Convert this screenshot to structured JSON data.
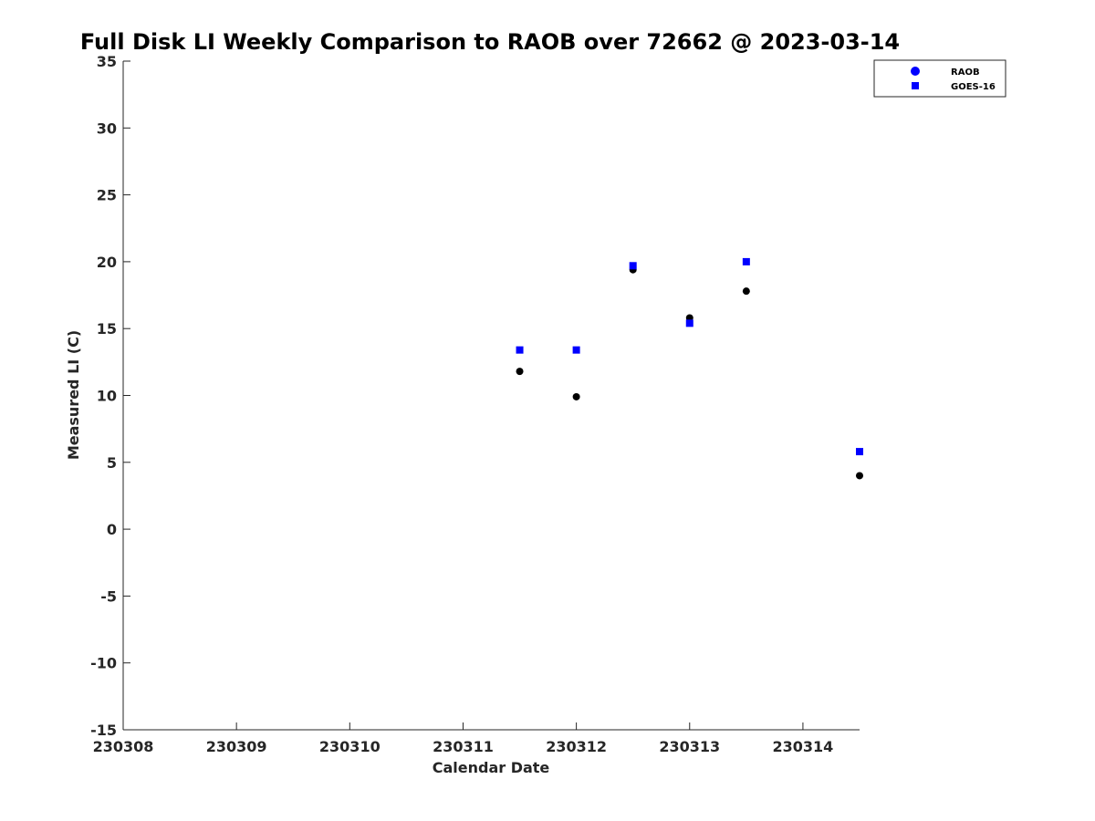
{
  "chart_data": {
    "type": "scatter",
    "title": "Full Disk LI Weekly Comparison to RAOB over 72662 @ 2023-03-14",
    "xlabel": "Calendar Date",
    "ylabel": "Measured LI (C)",
    "xlim": [
      0,
      6.5
    ],
    "ylim": [
      -15,
      35
    ],
    "x_ticks": [
      0,
      1,
      2,
      3,
      4,
      5,
      6
    ],
    "x_tick_labels": [
      "230308",
      "230309",
      "230310",
      "230311",
      "230312",
      "230313",
      "230314"
    ],
    "y_ticks": [
      -15,
      -10,
      -5,
      0,
      5,
      10,
      15,
      20,
      25,
      30,
      35
    ],
    "y_tick_labels": [
      "-15",
      "-10",
      "-5",
      "0",
      "5",
      "10",
      "15",
      "20",
      "25",
      "30",
      "35"
    ],
    "grid": false,
    "legend_position": "top-right",
    "series": [
      {
        "name": "RAOB",
        "marker": "circle",
        "color": "#000000",
        "legend_color": "#0000ff",
        "x": [
          3.5,
          4.0,
          4.5,
          5.0,
          5.5,
          6.5
        ],
        "y": [
          11.8,
          9.9,
          19.4,
          15.8,
          17.8,
          4.0
        ]
      },
      {
        "name": "GOES-16",
        "marker": "square",
        "color": "#0000ff",
        "legend_color": "#0000ff",
        "x": [
          3.5,
          4.0,
          4.5,
          5.0,
          5.5,
          6.5
        ],
        "y": [
          13.4,
          13.4,
          19.7,
          15.4,
          20.0,
          5.8
        ]
      }
    ]
  }
}
